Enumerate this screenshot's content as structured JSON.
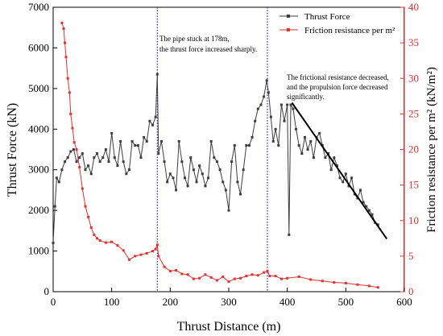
{
  "chart_data": {
    "type": "line",
    "xlabel": "Thrust Distance (m)",
    "ylabel_left": "Thrust Force (kN)",
    "ylabel_right": "Friction resistance per m² (kN/m²)",
    "xlim": [
      0,
      600
    ],
    "ylim_left": [
      0,
      7000
    ],
    "ylim_right": [
      0,
      40
    ],
    "x_ticks": [
      0,
      100,
      200,
      300,
      400,
      500,
      600
    ],
    "y_ticks_left": [
      0,
      1000,
      2000,
      3000,
      4000,
      5000,
      6000,
      7000
    ],
    "y_ticks_right": [
      0,
      5,
      10,
      15,
      20,
      25,
      30,
      35,
      40
    ],
    "legend_position": "top-right",
    "colors": {
      "thrust": "#3d3d3d",
      "friction": "#e8302c",
      "vline": "#1f1fd6",
      "trend": "#000000"
    },
    "series": [
      {
        "name": "Thrust Force",
        "axis": "left",
        "x": [
          0,
          3,
          6,
          10,
          15,
          20,
          25,
          30,
          35,
          40,
          45,
          50,
          55,
          60,
          65,
          70,
          75,
          80,
          85,
          90,
          95,
          100,
          105,
          110,
          115,
          120,
          125,
          130,
          135,
          140,
          145,
          150,
          155,
          160,
          165,
          170,
          175,
          178,
          180,
          185,
          190,
          195,
          200,
          205,
          210,
          215,
          220,
          225,
          230,
          235,
          240,
          245,
          250,
          255,
          260,
          265,
          270,
          275,
          280,
          285,
          290,
          295,
          300,
          305,
          310,
          315,
          320,
          325,
          330,
          335,
          340,
          345,
          350,
          355,
          360,
          365,
          368,
          372,
          376,
          380,
          385,
          390,
          395,
          400,
          403,
          406,
          410,
          415,
          420,
          425,
          430,
          435,
          440,
          445,
          450,
          455,
          460,
          465,
          470,
          475,
          480,
          485,
          490,
          495,
          500,
          505,
          510,
          515,
          520,
          525,
          530,
          535,
          540,
          545,
          550,
          555
        ],
        "values": [
          1200,
          2100,
          2800,
          2700,
          3000,
          3200,
          3300,
          3450,
          3500,
          3200,
          3300,
          3400,
          3000,
          3100,
          2900,
          3300,
          3400,
          3200,
          3300,
          3500,
          3200,
          3900,
          3300,
          3100,
          3700,
          3200,
          2900,
          3000,
          3700,
          3600,
          3600,
          3300,
          3800,
          3700,
          4200,
          4100,
          4300,
          5350,
          3400,
          3700,
          3200,
          2700,
          2900,
          2800,
          2500,
          3700,
          3200,
          2800,
          2600,
          3300,
          3000,
          2700,
          3100,
          2900,
          2600,
          2800,
          3700,
          3300,
          3200,
          3000,
          2700,
          2500,
          2000,
          3200,
          3600,
          2700,
          2400,
          3000,
          3600,
          3600,
          3800,
          4200,
          4500,
          4600,
          4800,
          5200,
          4900,
          4300,
          3700,
          4000,
          3600,
          4600,
          4200,
          4600,
          1400,
          4600,
          4500,
          4000,
          3600,
          3400,
          3800,
          3500,
          3700,
          3300,
          3800,
          3900,
          3600,
          3300,
          3400,
          3000,
          3300,
          3100,
          2800,
          2700,
          2900,
          2600,
          2800,
          2400,
          2300,
          2500,
          2200,
          2100,
          2000,
          1900,
          1700,
          1650
        ]
      },
      {
        "name": "Friction resistance per m²",
        "axis": "right",
        "x": [
          15,
          18,
          20,
          22,
          25,
          28,
          30,
          33,
          36,
          40,
          45,
          50,
          55,
          60,
          65,
          70,
          75,
          80,
          90,
          100,
          110,
          120,
          130,
          140,
          150,
          160,
          170,
          175,
          178,
          180,
          190,
          200,
          210,
          220,
          230,
          240,
          250,
          260,
          270,
          280,
          290,
          300,
          310,
          320,
          330,
          340,
          350,
          360,
          366,
          370,
          380,
          390,
          400,
          420,
          440,
          460,
          480,
          500,
          520,
          540,
          555
        ],
        "values": [
          37.8,
          37,
          35,
          33,
          30,
          28,
          25,
          23,
          21,
          20,
          17.5,
          14.5,
          12,
          10.5,
          9,
          8,
          7.5,
          7.2,
          6.9,
          7.0,
          6.5,
          5.8,
          4.5,
          5.0,
          5.2,
          5.4,
          5.7,
          6.0,
          6.6,
          5.0,
          3.5,
          2.9,
          3.0,
          2.5,
          2.4,
          1.8,
          1.9,
          2.4,
          2.0,
          1.6,
          2.1,
          1.4,
          1.8,
          1.9,
          2.2,
          2.4,
          2.3,
          2.7,
          2.9,
          2.2,
          2.2,
          1.8,
          1.9,
          2.1,
          1.7,
          1.5,
          1.3,
          1.2,
          1.0,
          0.8,
          0.6
        ]
      }
    ],
    "vlines": [
      178,
      366
    ],
    "trend_line": {
      "x": [
        408,
        570
      ],
      "y": [
        4650,
        1300
      ]
    },
    "annotations": [
      {
        "id": "stuck",
        "lines": [
          "The pipe stuck at 178m,",
          "the thrust force increased sharply."
        ]
      },
      {
        "id": "decrease",
        "lines": [
          "The frictional resistance decreased,",
          "and the propulsion force decreased",
          "significantly."
        ]
      }
    ]
  }
}
